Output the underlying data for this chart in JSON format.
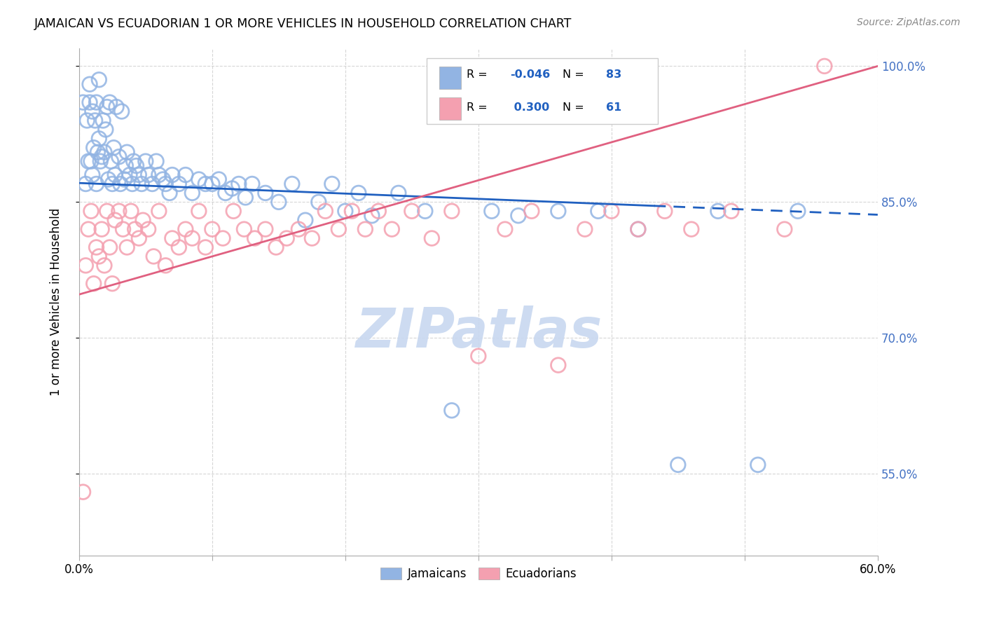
{
  "title": "JAMAICAN VS ECUADORIAN 1 OR MORE VEHICLES IN HOUSEHOLD CORRELATION CHART",
  "source": "Source: ZipAtlas.com",
  "ylabel": "1 or more Vehicles in Household",
  "xlim": [
    0.0,
    0.6
  ],
  "ylim": [
    0.46,
    1.02
  ],
  "yticks": [
    0.55,
    0.7,
    0.85,
    1.0
  ],
  "ytick_labels": [
    "55.0%",
    "70.0%",
    "85.0%",
    "100.0%"
  ],
  "xticks": [
    0.0,
    0.1,
    0.2,
    0.3,
    0.4,
    0.5,
    0.6
  ],
  "r_jamaican": -0.046,
  "n_jamaican": 83,
  "r_ecuadorian": 0.3,
  "n_ecuadorian": 61,
  "color_jamaican": "#92b4e3",
  "color_ecuadorian": "#f4a0b0",
  "line_color_jamaican": "#2060c0",
  "line_color_ecuadorian": "#e06080",
  "watermark": "ZIPatlas",
  "watermark_color": "#c8d8f0",
  "jamaican_x": [
    0.003,
    0.005,
    0.006,
    0.007,
    0.008,
    0.008,
    0.009,
    0.01,
    0.01,
    0.011,
    0.012,
    0.013,
    0.013,
    0.014,
    0.015,
    0.015,
    0.016,
    0.017,
    0.018,
    0.019,
    0.02,
    0.021,
    0.022,
    0.023,
    0.024,
    0.025,
    0.026,
    0.027,
    0.028,
    0.03,
    0.031,
    0.032,
    0.034,
    0.035,
    0.036,
    0.038,
    0.04,
    0.041,
    0.043,
    0.045,
    0.047,
    0.05,
    0.052,
    0.055,
    0.058,
    0.06,
    0.063,
    0.065,
    0.068,
    0.07,
    0.075,
    0.08,
    0.085,
    0.09,
    0.095,
    0.1,
    0.105,
    0.11,
    0.115,
    0.12,
    0.125,
    0.13,
    0.14,
    0.15,
    0.16,
    0.17,
    0.18,
    0.19,
    0.2,
    0.21,
    0.22,
    0.24,
    0.26,
    0.28,
    0.31,
    0.33,
    0.36,
    0.39,
    0.42,
    0.45,
    0.48,
    0.51,
    0.54
  ],
  "jamaican_y": [
    0.96,
    0.87,
    0.94,
    0.895,
    0.96,
    0.98,
    0.895,
    0.88,
    0.95,
    0.91,
    0.94,
    0.87,
    0.96,
    0.905,
    0.92,
    0.985,
    0.895,
    0.9,
    0.94,
    0.905,
    0.93,
    0.955,
    0.875,
    0.96,
    0.895,
    0.87,
    0.91,
    0.88,
    0.955,
    0.9,
    0.87,
    0.95,
    0.875,
    0.89,
    0.905,
    0.88,
    0.87,
    0.895,
    0.89,
    0.88,
    0.87,
    0.895,
    0.88,
    0.87,
    0.895,
    0.88,
    0.875,
    0.87,
    0.86,
    0.88,
    0.87,
    0.88,
    0.86,
    0.875,
    0.87,
    0.87,
    0.875,
    0.86,
    0.865,
    0.87,
    0.855,
    0.87,
    0.86,
    0.85,
    0.87,
    0.83,
    0.85,
    0.87,
    0.84,
    0.86,
    0.835,
    0.86,
    0.84,
    0.62,
    0.84,
    0.835,
    0.84,
    0.84,
    0.82,
    0.56,
    0.84,
    0.56,
    0.84
  ],
  "ecuadorian_x": [
    0.003,
    0.005,
    0.007,
    0.009,
    0.011,
    0.013,
    0.015,
    0.017,
    0.019,
    0.021,
    0.023,
    0.025,
    0.027,
    0.03,
    0.033,
    0.036,
    0.039,
    0.042,
    0.045,
    0.048,
    0.052,
    0.056,
    0.06,
    0.065,
    0.07,
    0.075,
    0.08,
    0.085,
    0.09,
    0.095,
    0.1,
    0.108,
    0.116,
    0.124,
    0.132,
    0.14,
    0.148,
    0.156,
    0.165,
    0.175,
    0.185,
    0.195,
    0.205,
    0.215,
    0.225,
    0.235,
    0.25,
    0.265,
    0.28,
    0.3,
    0.32,
    0.34,
    0.36,
    0.38,
    0.4,
    0.42,
    0.44,
    0.46,
    0.49,
    0.53,
    0.56
  ],
  "ecuadorian_y": [
    0.53,
    0.78,
    0.82,
    0.84,
    0.76,
    0.8,
    0.79,
    0.82,
    0.78,
    0.84,
    0.8,
    0.76,
    0.83,
    0.84,
    0.82,
    0.8,
    0.84,
    0.82,
    0.81,
    0.83,
    0.82,
    0.79,
    0.84,
    0.78,
    0.81,
    0.8,
    0.82,
    0.81,
    0.84,
    0.8,
    0.82,
    0.81,
    0.84,
    0.82,
    0.81,
    0.82,
    0.8,
    0.81,
    0.82,
    0.81,
    0.84,
    0.82,
    0.84,
    0.82,
    0.84,
    0.82,
    0.84,
    0.81,
    0.84,
    0.68,
    0.82,
    0.84,
    0.67,
    0.82,
    0.84,
    0.82,
    0.84,
    0.82,
    0.84,
    0.82,
    1.0
  ],
  "j_line_x": [
    0.0,
    0.6
  ],
  "j_line_y": [
    0.871,
    0.836
  ],
  "e_line_x": [
    0.0,
    0.6
  ],
  "e_line_y": [
    0.748,
    1.0
  ]
}
